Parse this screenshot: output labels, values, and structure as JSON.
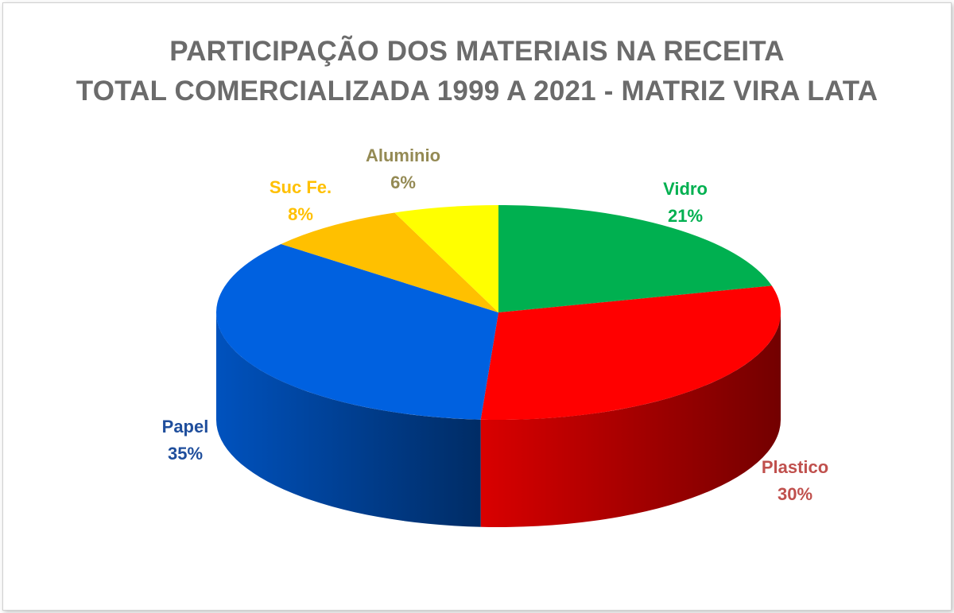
{
  "colors": {
    "title": "#6b6b6b",
    "Vidro": "#00b050",
    "Plastico": "#ff0000",
    "Papel": "#0061e0",
    "Suc Fe.": "#ffc000",
    "Aluminio": "#ffff00",
    "label_Vidro": "#00b050",
    "label_Plastico": "#c0504d",
    "label_Papel": "#1f4e9c",
    "label_Suc Fe.": "#ffc000",
    "label_Aluminio": "#948a54"
  },
  "chart_data": {
    "type": "pie",
    "title_line1": "PARTICIPAÇÃO DOS MATERIAIS NA RECEITA",
    "title_line2": "TOTAL COMERCIALIZADA  1999 A 2021 - MATRIZ VIRA LATA",
    "categories": [
      "Vidro",
      "Plastico",
      "Papel",
      "Suc Fe.",
      "Aluminio"
    ],
    "values": [
      21,
      30,
      35,
      8,
      6
    ],
    "value_labels": [
      "21%",
      "30%",
      "35%",
      "8%",
      "6%"
    ],
    "style": "3d",
    "legend": "none"
  }
}
